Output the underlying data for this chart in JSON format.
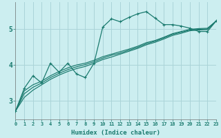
{
  "background_color": "#cceef0",
  "grid_color": "#aad4d8",
  "line_color": "#1a7a6e",
  "xlabel": "Humidex (Indice chaleur)",
  "x_ticks": [
    0,
    1,
    2,
    3,
    4,
    5,
    6,
    7,
    8,
    9,
    10,
    11,
    12,
    13,
    14,
    15,
    16,
    17,
    18,
    19,
    20,
    21,
    22,
    23
  ],
  "y_ticks": [
    3,
    4,
    5
  ],
  "ylim": [
    2.5,
    5.75
  ],
  "xlim": [
    0,
    23
  ],
  "series1_x": [
    0,
    1,
    2,
    3,
    4,
    5,
    6,
    7,
    8,
    9,
    10,
    11,
    12,
    13,
    14,
    15,
    16,
    17,
    18,
    19,
    20,
    21,
    22,
    23
  ],
  "series1_y": [
    2.72,
    3.35,
    3.7,
    3.5,
    4.05,
    3.8,
    4.05,
    3.75,
    3.65,
    4.05,
    5.05,
    5.28,
    5.2,
    5.32,
    5.42,
    5.48,
    5.3,
    5.12,
    5.12,
    5.08,
    5.02,
    4.93,
    4.93,
    5.22
  ],
  "series2_x": [
    0,
    1,
    2,
    3,
    4,
    5,
    6,
    7,
    8,
    9,
    10,
    11,
    12,
    13,
    14,
    15,
    16,
    17,
    18,
    19,
    20,
    21,
    22,
    23
  ],
  "series2_y": [
    2.72,
    3.1,
    3.3,
    3.45,
    3.6,
    3.72,
    3.82,
    3.9,
    3.96,
    4.05,
    4.15,
    4.22,
    4.3,
    4.38,
    4.46,
    4.56,
    4.63,
    4.72,
    4.82,
    4.88,
    4.95,
    4.97,
    4.98,
    5.22
  ],
  "series3_x": [
    0,
    1,
    2,
    3,
    4,
    5,
    6,
    7,
    8,
    9,
    10,
    11,
    12,
    13,
    14,
    15,
    16,
    17,
    18,
    19,
    20,
    21,
    22,
    23
  ],
  "series3_y": [
    2.72,
    3.2,
    3.38,
    3.5,
    3.65,
    3.77,
    3.87,
    3.95,
    4.01,
    4.09,
    4.19,
    4.27,
    4.33,
    4.41,
    4.49,
    4.59,
    4.66,
    4.75,
    4.85,
    4.91,
    4.97,
    4.99,
    5.0,
    5.22
  ],
  "series4_x": [
    0,
    1,
    2,
    3,
    4,
    5,
    6,
    7,
    8,
    9,
    10,
    11,
    12,
    13,
    14,
    15,
    16,
    17,
    18,
    19,
    20,
    21,
    22,
    23
  ],
  "series4_y": [
    2.72,
    3.28,
    3.45,
    3.55,
    3.7,
    3.82,
    3.92,
    4.0,
    4.05,
    4.13,
    4.23,
    4.3,
    4.37,
    4.44,
    4.52,
    4.62,
    4.68,
    4.77,
    4.87,
    4.93,
    4.99,
    5.01,
    5.02,
    5.22
  ]
}
